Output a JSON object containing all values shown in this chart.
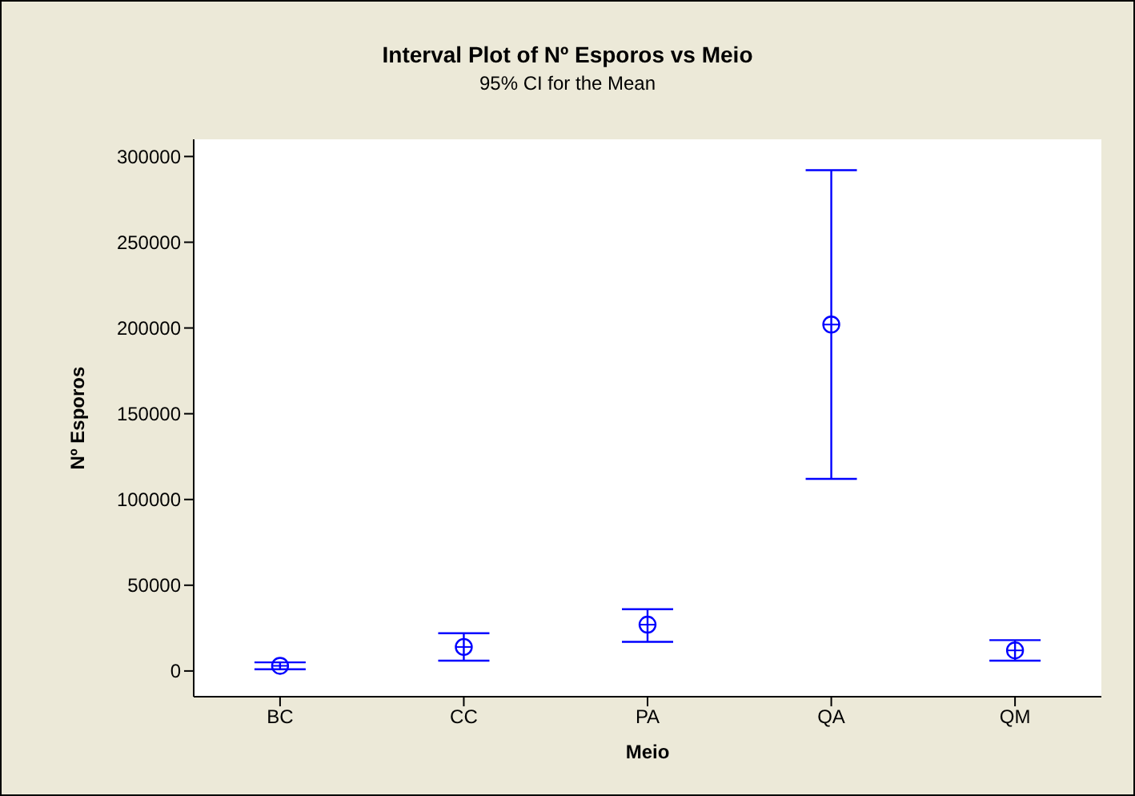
{
  "chart_data": {
    "type": "scatter",
    "title": "Interval Plot of Nº Esporos vs Meio",
    "subtitle": "95% CI for the Mean",
    "xlabel": "Meio",
    "ylabel": "Nº Esporos",
    "categories": [
      "BC",
      "CC",
      "PA",
      "QA",
      "QM"
    ],
    "series": [
      {
        "color": "#0000ff",
        "values": [
          3000,
          14000,
          27000,
          202000,
          12000
        ],
        "errors": [
          [
            1000,
            5000
          ],
          [
            6000,
            22000
          ],
          [
            17000,
            36000
          ],
          [
            112000,
            292000
          ],
          [
            6000,
            18000
          ]
        ]
      }
    ],
    "ylim": [
      -15000,
      310000
    ],
    "yticks": [
      0,
      50000,
      100000,
      150000,
      200000,
      250000,
      300000
    ],
    "marker": "circle",
    "grid": false,
    "legend": false
  }
}
